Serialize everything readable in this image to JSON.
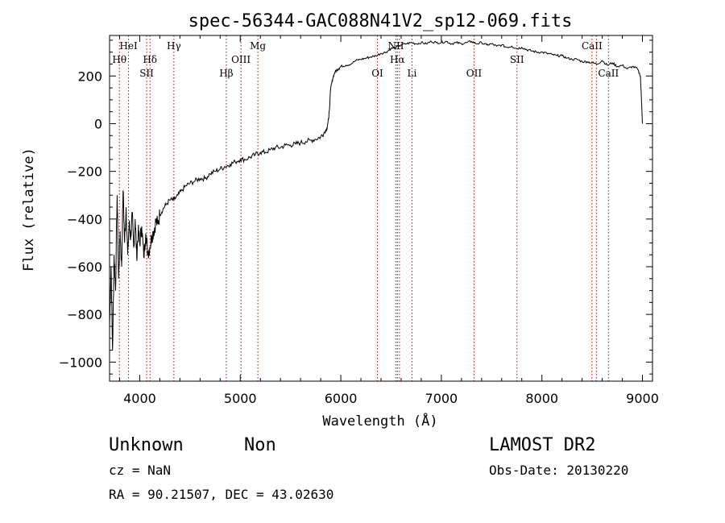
{
  "chart_data": {
    "type": "line",
    "title": "spec-56344-GAC088N41V2_sp12-069.fits",
    "xlabel": "Wavelength (Å)",
    "ylabel": "Flux (relative)",
    "xlim": [
      3700,
      9100
    ],
    "ylim": [
      -1080,
      370
    ],
    "x_ticks": [
      4000,
      5000,
      6000,
      7000,
      8000,
      9000
    ],
    "y_ticks": [
      200,
      0,
      -200,
      -400,
      -600,
      -800,
      -1000
    ],
    "spectral_lines": [
      {
        "name": "Hθ",
        "wavelength": 3798,
        "row": "top2"
      },
      {
        "name": "HeI",
        "wavelength": 3889,
        "row": "top1"
      },
      {
        "name": "SII",
        "wavelength": 4069,
        "row": "top3"
      },
      {
        "name": "Hδ",
        "wavelength": 4102,
        "row": "top2"
      },
      {
        "name": "Hγ",
        "wavelength": 4340,
        "row": "top1"
      },
      {
        "name": "Hβ",
        "wavelength": 4861,
        "row": "top3"
      },
      {
        "name": "OIII",
        "wavelength": 5007,
        "row": "top2"
      },
      {
        "name": "Mg",
        "wavelength": 5175,
        "row": "top1"
      },
      {
        "name": "OI",
        "wavelength": 6364,
        "row": "top3"
      },
      {
        "name": "NII",
        "wavelength": 6548,
        "row": "top1"
      },
      {
        "name": "Hα",
        "wavelength": 6563,
        "row": "top2"
      },
      {
        "name": "NII",
        "wavelength": 6583,
        "row": "none"
      },
      {
        "name": "Li",
        "wavelength": 6708,
        "row": "top3"
      },
      {
        "name": "OII",
        "wavelength": 7325,
        "row": "top3"
      },
      {
        "name": "SII",
        "wavelength": 7752,
        "row": "top2"
      },
      {
        "name": "CaII",
        "wavelength": 8498,
        "row": "top1"
      },
      {
        "name": "CaII",
        "wavelength": 8542,
        "row": "none"
      },
      {
        "name": "CaII",
        "wavelength": 8662,
        "row": "top3"
      }
    ],
    "series": [
      {
        "x": [
          3700,
          3715,
          3730,
          3745,
          3760,
          3775,
          3790,
          3805,
          3820,
          3835,
          3850,
          3865,
          3880,
          3895,
          3910,
          3925,
          3940,
          3955,
          3970,
          3985,
          4000,
          4020,
          4040,
          4060,
          4080,
          4100,
          4120,
          4140,
          4160,
          4180,
          4200,
          4230,
          4260,
          4300,
          4340,
          4380,
          4420,
          4460,
          4500,
          4550,
          4600,
          4650,
          4700,
          4750,
          4800,
          4850,
          4900,
          4950,
          5000,
          5050,
          5100,
          5150,
          5200,
          5250,
          5300,
          5350,
          5400,
          5450,
          5500,
          5550,
          5600,
          5650,
          5700,
          5750,
          5800,
          5830,
          5860,
          5880,
          5900,
          5920,
          5940,
          5960,
          5980,
          6000,
          6050,
          6100,
          6150,
          6200,
          6250,
          6300,
          6350,
          6400,
          6450,
          6500,
          6550,
          6600,
          6650,
          6700,
          6750,
          6800,
          6850,
          6900,
          6950,
          7000,
          7050,
          7100,
          7150,
          7200,
          7250,
          7300,
          7350,
          7400,
          7450,
          7500,
          7550,
          7600,
          7650,
          7700,
          7750,
          7800,
          7850,
          7900,
          7950,
          8000,
          8050,
          8100,
          8150,
          8200,
          8250,
          8300,
          8350,
          8400,
          8450,
          8500,
          8550,
          8600,
          8650,
          8700,
          8750,
          8800,
          8850,
          8900,
          8950,
          8980,
          9000
        ],
        "y": [
          -850,
          -600,
          -950,
          -550,
          -700,
          -300,
          -650,
          -450,
          -600,
          -280,
          -500,
          -350,
          -550,
          -420,
          -480,
          -380,
          -520,
          -400,
          -560,
          -450,
          -500,
          -430,
          -560,
          -460,
          -540,
          -520,
          -470,
          -450,
          -410,
          -420,
          -380,
          -360,
          -340,
          -320,
          -320,
          -300,
          -280,
          -260,
          -250,
          -240,
          -230,
          -230,
          -210,
          -200,
          -190,
          -180,
          -170,
          -160,
          -150,
          -150,
          -140,
          -130,
          -120,
          -120,
          -110,
          -100,
          -100,
          -90,
          -90,
          -85,
          -80,
          -75,
          -70,
          -65,
          -55,
          -40,
          -20,
          20,
          150,
          190,
          215,
          225,
          230,
          240,
          245,
          250,
          265,
          270,
          275,
          280,
          285,
          295,
          300,
          315,
          320,
          330,
          335,
          340,
          335,
          340,
          335,
          345,
          340,
          340,
          345,
          335,
          340,
          335,
          340,
          345,
          335,
          340,
          330,
          335,
          325,
          330,
          320,
          325,
          315,
          320,
          310,
          305,
          300,
          300,
          295,
          290,
          285,
          285,
          275,
          270,
          270,
          260,
          260,
          255,
          250,
          265,
          245,
          255,
          240,
          245,
          230,
          240,
          230,
          200,
          0
        ]
      }
    ]
  },
  "footer": {
    "object_class": "Unknown",
    "subclass": "Non",
    "survey": "LAMOST DR2",
    "cz": "cz = NaN",
    "obs_date": "Obs-Date: 20130220",
    "coords": "RA =  90.21507, DEC =  43.02630"
  }
}
